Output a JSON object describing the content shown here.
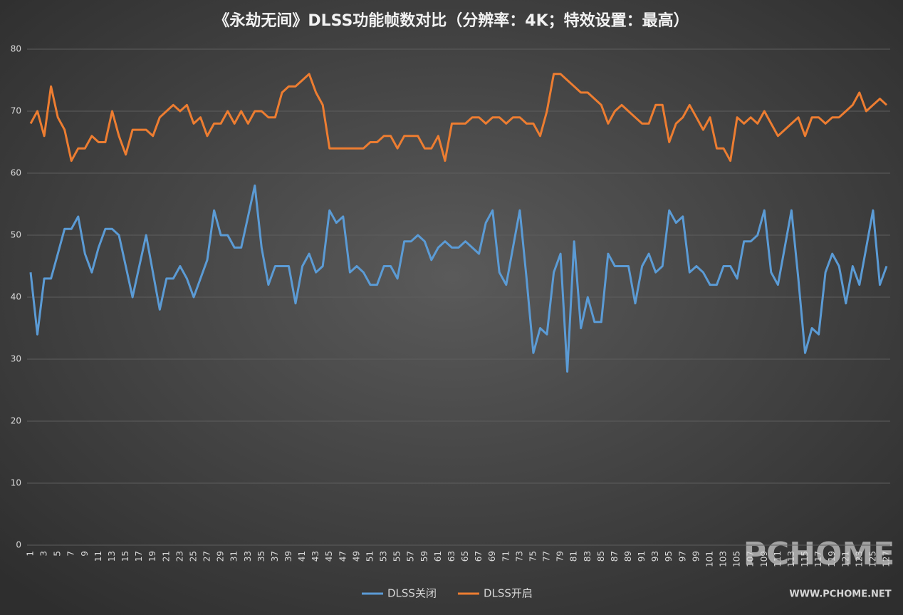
{
  "chart_data": {
    "type": "line",
    "title": "《永劫无间》DLSS功能帧数对比（分辨率：4K；特效设置：最高）",
    "categories": [
      "1",
      null,
      "3",
      null,
      "5",
      null,
      "7",
      null,
      "9",
      null,
      "11",
      null,
      "13",
      null,
      "15",
      null,
      "17",
      null,
      "19",
      null,
      "21",
      null,
      "23",
      null,
      "25",
      null,
      "27",
      null,
      "29",
      null,
      "31",
      null,
      "33",
      null,
      "35",
      null,
      "37",
      null,
      "39",
      null,
      "41",
      null,
      "43",
      null,
      "45",
      null,
      "47",
      null,
      "49",
      null,
      "51",
      null,
      "53",
      null,
      "55",
      null,
      "57",
      null,
      "59",
      null,
      "61",
      null,
      "63",
      null,
      "65",
      null,
      "67",
      null,
      "69",
      null,
      "71",
      null,
      "73",
      null,
      "75",
      null,
      "77",
      null,
      "79",
      null,
      "81",
      null,
      "83",
      null,
      "85",
      null,
      "87",
      null,
      "89",
      null,
      "91",
      null,
      "93",
      null,
      "95",
      null,
      "97",
      null,
      "99",
      null,
      "101",
      null,
      "103",
      null,
      "105",
      null,
      "107",
      null,
      "109",
      null,
      "111",
      null,
      "113",
      null,
      "115",
      null,
      "117",
      null,
      "119",
      null,
      "121",
      null,
      "123",
      null,
      "125",
      null,
      "127"
    ],
    "series": [
      {
        "name": "DLSS关闭",
        "color": "#5b9bd5",
        "values": [
          44,
          34,
          43,
          43,
          47,
          51,
          51,
          53,
          47,
          44,
          48,
          51,
          51,
          50,
          45,
          40,
          45,
          50,
          44,
          38,
          43,
          43,
          45,
          43,
          40,
          43,
          46,
          54,
          50,
          50,
          48,
          48,
          53,
          58,
          48,
          42,
          45,
          45,
          45,
          39,
          45,
          47,
          44,
          45,
          54,
          52,
          53,
          44,
          45,
          44,
          42,
          42,
          45,
          45,
          43,
          49,
          49,
          50,
          49,
          46,
          48,
          49,
          48,
          48,
          49,
          48,
          47,
          52,
          54,
          44,
          42,
          48,
          54,
          43,
          31,
          35,
          34,
          44,
          47,
          28,
          49,
          35,
          40,
          36,
          36,
          47,
          45,
          45,
          45,
          39,
          45,
          47,
          44,
          45,
          54,
          52,
          53,
          44,
          45,
          44,
          42,
          42,
          45,
          45,
          43,
          49,
          49,
          50,
          54,
          44,
          42,
          48,
          54,
          43,
          31,
          35,
          34,
          44,
          47,
          45,
          39,
          45,
          42,
          48,
          54,
          42,
          45
        ]
      },
      {
        "name": "DLSS开启",
        "color": "#ed7d31",
        "values": [
          68,
          70,
          66,
          74,
          69,
          67,
          62,
          64,
          64,
          66,
          65,
          65,
          70,
          66,
          63,
          67,
          67,
          67,
          66,
          69,
          70,
          71,
          70,
          71,
          68,
          69,
          66,
          68,
          68,
          70,
          68,
          70,
          68,
          70,
          70,
          69,
          69,
          73,
          74,
          74,
          75,
          76,
          73,
          71,
          64,
          64,
          64,
          64,
          64,
          64,
          65,
          65,
          66,
          66,
          64,
          66,
          66,
          66,
          64,
          64,
          66,
          62,
          68,
          68,
          68,
          69,
          69,
          68,
          69,
          69,
          68,
          69,
          69,
          68,
          68,
          66,
          70,
          76,
          76,
          75,
          74,
          73,
          73,
          72,
          71,
          68,
          70,
          71,
          70,
          69,
          68,
          68,
          71,
          71,
          65,
          68,
          69,
          71,
          69,
          67,
          69,
          64,
          64,
          62,
          69,
          68,
          69,
          68,
          70,
          68,
          66,
          67,
          68,
          69,
          66,
          69,
          69,
          68,
          69,
          69,
          70,
          71,
          73,
          70,
          71,
          72,
          71
        ]
      }
    ],
    "ylim": [
      0,
      80
    ],
    "yticks": [
      0,
      10,
      20,
      30,
      40,
      50,
      60,
      70,
      80
    ],
    "grid": true,
    "legend": "bottom",
    "watermark": {
      "logo": "PCHOME",
      "url": "WWW.PCHOME.NET"
    }
  }
}
